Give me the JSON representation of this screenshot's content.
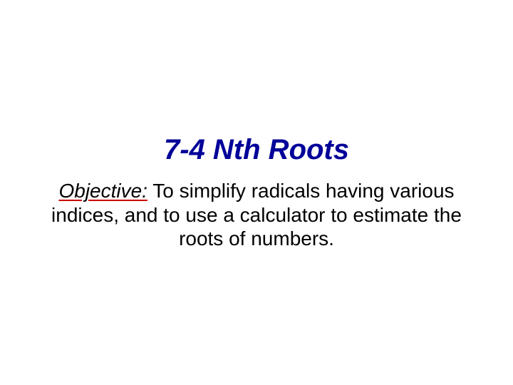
{
  "slide": {
    "title": "7-4 Nth Roots",
    "objective_label": "Objective:",
    "objective_text_1": "  To simplify radicals having various indices, and to use a calculator to estimate the roots of numbers.",
    "title_color": "#000099",
    "title_fontsize": 40,
    "body_fontsize": 28,
    "underline_color": "#cc0000",
    "background_color": "#ffffff",
    "text_color": "#000000"
  }
}
